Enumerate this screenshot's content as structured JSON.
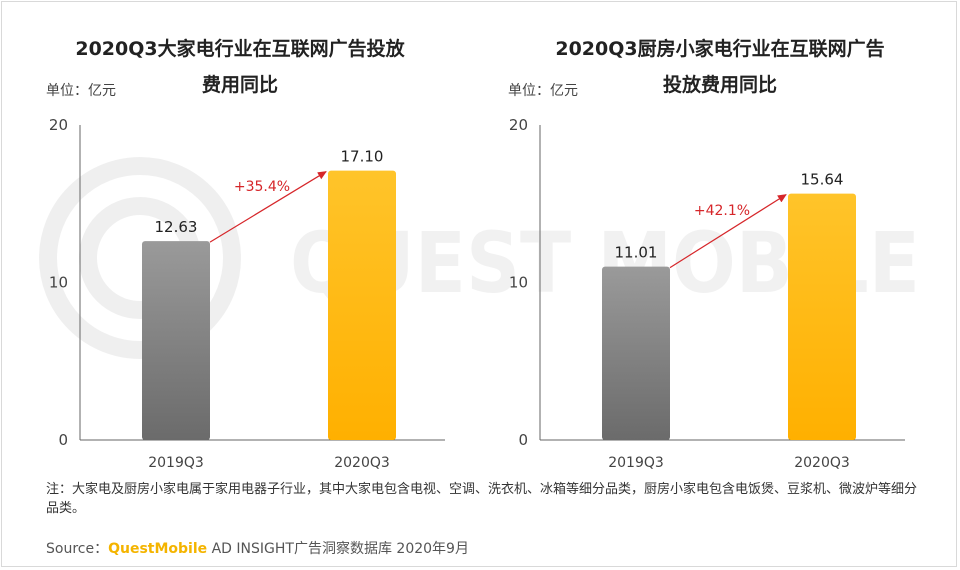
{
  "watermark": "QUEST MOBILE",
  "colors": {
    "bar_2019": "#7f7f7f",
    "bar_2020": "#ffb60f",
    "arrow": "#d6262a",
    "axis": "#666666"
  },
  "chart_data": [
    {
      "type": "bar",
      "title_lines": [
        "2020Q3大家电行业在互联网广告投放",
        "费用同比"
      ],
      "unit_label": "单位：亿元",
      "categories": [
        "2019Q3",
        "2020Q3"
      ],
      "values": [
        12.63,
        17.1
      ],
      "value_labels": [
        "12.63",
        "17.10"
      ],
      "growth_label": "+35.4%",
      "ylim": [
        0,
        20
      ],
      "yticks": [
        0,
        10,
        20
      ],
      "grid": false,
      "legend": "none"
    },
    {
      "type": "bar",
      "title_lines": [
        "2020Q3厨房小家电行业在互联网广告",
        "投放费用同比"
      ],
      "unit_label": "单位：亿元",
      "categories": [
        "2019Q3",
        "2020Q3"
      ],
      "values": [
        11.01,
        15.64
      ],
      "value_labels": [
        "11.01",
        "15.64"
      ],
      "growth_label": "+42.1%",
      "ylim": [
        0,
        20
      ],
      "yticks": [
        0,
        10,
        20
      ],
      "grid": false,
      "legend": "none"
    }
  ],
  "note": "注：大家电及厨房小家电属于家用电器子行业，其中大家电包含电视、空调、洗衣机、冰箱等细分品类，厨房小家电包含电饭煲、豆浆机、微波炉等细分品类。",
  "source": {
    "prefix": "Source：",
    "brand": "QuestMobile",
    "suffix": " AD INSIGHT广告洞察数据库 2020年9月"
  }
}
